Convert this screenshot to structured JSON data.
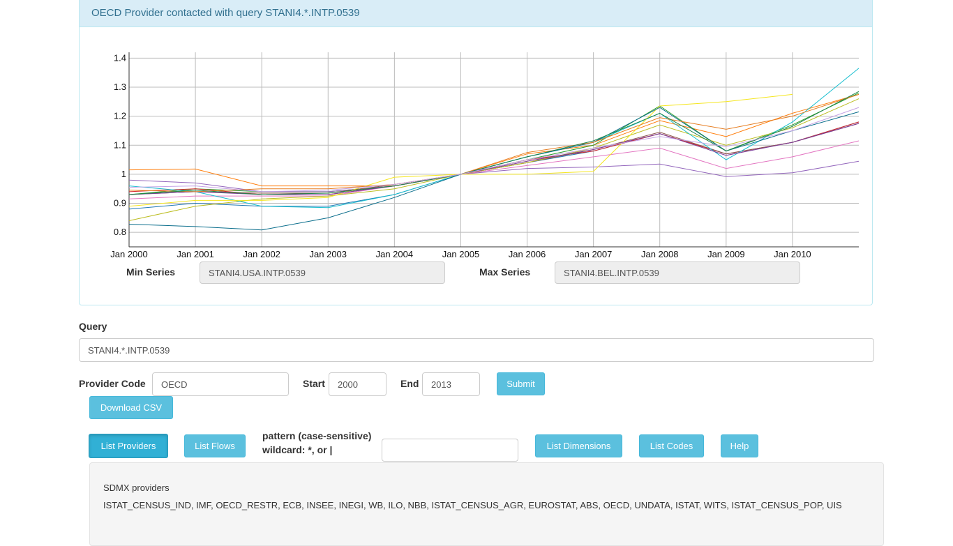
{
  "panel": {
    "title": "OECD Provider contacted with query STANI4.*.INTP.0539"
  },
  "chart_data": {
    "type": "line",
    "x_tick_labels": [
      "Jan 2000",
      "Jan 2001",
      "Jan 2002",
      "Jan 2003",
      "Jan 2004",
      "Jan 2005",
      "Jan 2006",
      "Jan 2007",
      "Jan 2008",
      "Jan 2009",
      "Jan 2010"
    ],
    "x": [
      2000,
      2001,
      2002,
      2003,
      2004,
      2005,
      2006,
      2007,
      2008,
      2009,
      2010,
      2011
    ],
    "xlim": [
      2000,
      2011
    ],
    "ylim": [
      0.75,
      1.42
    ],
    "y_ticks": [
      0.8,
      0.9,
      1,
      1.1,
      1.2,
      1.3,
      1.4
    ],
    "y_tick_labels": [
      "0.8",
      "0.9",
      "1",
      "1.1",
      "1.2",
      "1.3",
      "1.4"
    ],
    "grid": true,
    "series": [
      {
        "color": "#1f77b4",
        "values": [
          0.88,
          0.9,
          0.89,
          0.89,
          0.93,
          1.0,
          1.04,
          1.08,
          1.14,
          1.07,
          1.11,
          1.18
        ]
      },
      {
        "color": "#ff7f0e",
        "values": [
          1.015,
          1.018,
          0.96,
          0.96,
          0.96,
          1.0,
          1.07,
          1.1,
          1.185,
          1.13,
          1.21,
          1.275
        ]
      },
      {
        "color": "#2ca02c",
        "values": [
          0.93,
          0.95,
          0.94,
          0.94,
          0.96,
          1.0,
          1.05,
          1.1,
          1.235,
          1.08,
          1.17,
          1.28
        ]
      },
      {
        "color": "#d62728",
        "values": [
          0.94,
          0.95,
          0.93,
          0.93,
          0.96,
          1.0,
          1.05,
          1.08,
          1.14,
          1.07,
          1.11,
          1.18
        ]
      },
      {
        "color": "#9467bd",
        "values": [
          0.98,
          0.97,
          0.94,
          0.94,
          0.96,
          1.0,
          1.02,
          1.025,
          1.035,
          0.992,
          1.005,
          1.045
        ]
      },
      {
        "color": "#8c564b",
        "values": [
          0.93,
          0.94,
          0.935,
          0.935,
          0.965,
          1.0,
          1.04,
          1.085,
          1.145,
          1.07,
          1.11,
          1.175
        ]
      },
      {
        "color": "#e377c2",
        "values": [
          0.915,
          0.925,
          0.925,
          0.925,
          0.96,
          1.0,
          1.03,
          1.06,
          1.09,
          1.02,
          1.06,
          1.115
        ]
      },
      {
        "color": "#bcbd22",
        "values": [
          0.84,
          0.89,
          0.915,
          0.925,
          0.95,
          1.0,
          1.04,
          1.09,
          1.17,
          1.1,
          1.16,
          1.26
        ]
      },
      {
        "color": "#17becf",
        "values": [
          0.96,
          0.94,
          0.89,
          0.885,
          0.93,
          1.0,
          1.06,
          1.11,
          1.21,
          1.05,
          1.18,
          1.365
        ]
      },
      {
        "color": "#f5e61f",
        "values": [
          0.89,
          0.91,
          0.91,
          0.92,
          0.99,
          1.0,
          1.0,
          1.01,
          1.235,
          1.25,
          1.275,
          null
        ]
      },
      {
        "color": "#0b6e8c",
        "values": [
          0.828,
          0.82,
          0.808,
          0.85,
          0.92,
          1.0,
          1.06,
          1.11,
          1.23,
          1.08,
          1.15,
          1.215
        ]
      },
      {
        "color": "#7d3c98",
        "values": [
          0.93,
          0.94,
          0.93,
          0.93,
          0.96,
          1.0,
          1.045,
          1.085,
          1.14,
          1.065,
          1.11,
          1.175
        ]
      },
      {
        "color": "#e67e22",
        "values": [
          0.945,
          0.94,
          0.95,
          0.95,
          0.965,
          1.0,
          1.075,
          1.11,
          1.195,
          1.155,
          1.2,
          1.275
        ]
      },
      {
        "color": "#1e8449",
        "values": [
          0.93,
          0.945,
          0.93,
          0.935,
          0.96,
          1.0,
          1.06,
          1.115,
          1.21,
          1.08,
          1.165,
          1.285
        ]
      },
      {
        "color": "#c5a3e6",
        "values": [
          0.955,
          0.96,
          0.94,
          0.945,
          0.965,
          1.0,
          1.05,
          1.09,
          1.13,
          1.095,
          1.15,
          1.23
        ]
      }
    ]
  },
  "min_series": {
    "label": "Min Series",
    "value": "STANI4.USA.INTP.0539"
  },
  "max_series": {
    "label": "Max Series",
    "value": "STANI4.BEL.INTP.0539"
  },
  "query": {
    "label": "Query",
    "value": "STANI4.*.INTP.0539"
  },
  "provider": {
    "label": "Provider Code",
    "value": "OECD"
  },
  "start": {
    "label": "Start",
    "value": "2000"
  },
  "end": {
    "label": "End",
    "value": "2013"
  },
  "buttons": {
    "submit": "Submit",
    "download_csv": "Download CSV",
    "list_providers": "List Providers",
    "list_flows": "List Flows",
    "list_dimensions": "List Dimensions",
    "list_codes": "List Codes",
    "help": "Help"
  },
  "pattern": {
    "line1": "pattern (case-sensitive)",
    "line2": "wildcard: *, or |",
    "value": ""
  },
  "result": {
    "title": "SDMX providers",
    "text": "ISTAT_CENSUS_IND, IMF, OECD_RESTR, ECB, INSEE, INEGI, WB, ILO, NBB, ISTAT_CENSUS_AGR, EUROSTAT, ABS, OECD, UNDATA, ISTAT, WITS, ISTAT_CENSUS_POP, UIS"
  }
}
